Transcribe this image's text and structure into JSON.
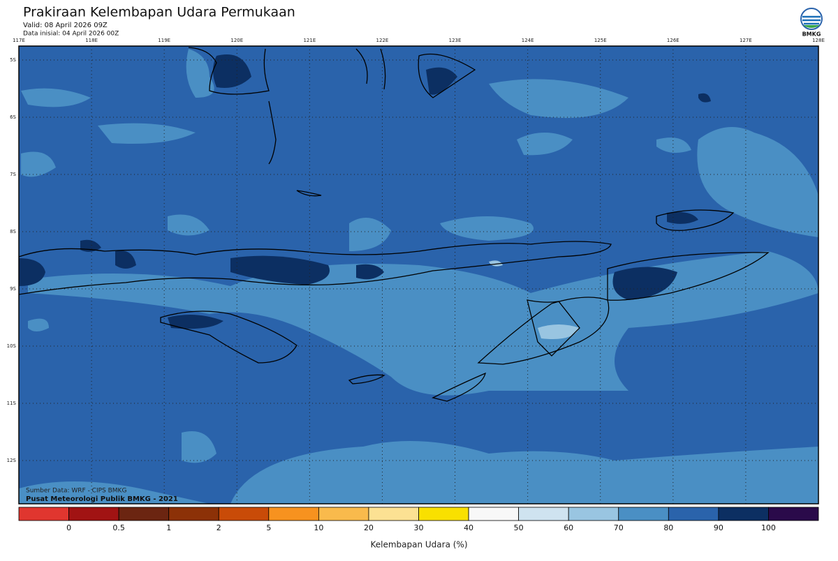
{
  "header": {
    "title": "Prakiraan Kelembapan Udara Permukaan",
    "valid": "Valid: 08 April 2026 09Z",
    "initial": "Data inisial: 04 April 2026 00Z",
    "logo": "BMKG"
  },
  "map": {
    "lon_labels": [
      "117E",
      "118E",
      "119E",
      "120E",
      "121E",
      "122E",
      "123E",
      "124E",
      "125E",
      "126E",
      "127E",
      "128E"
    ],
    "lat_labels": [
      "5S",
      "6S",
      "7S",
      "8S",
      "9S",
      "10S",
      "11S",
      "12S"
    ],
    "source": "Sumber Data: WRF - CIPS BMKG",
    "credit": "Pusat Meteorologi Publik BMKG - 2021"
  },
  "colorbar": {
    "colors": [
      "#e0362f",
      "#a11313",
      "#6b2511",
      "#8c3107",
      "#c94b08",
      "#f7921f",
      "#f9ba4c",
      "#fce193",
      "#f9e000",
      "#f8f8f8",
      "#cfe3f0",
      "#99c5e1",
      "#4a8fc4",
      "#2a63ab",
      "#0c2f62",
      "#2a0a4a"
    ],
    "labels": [
      0,
      0.5,
      1,
      2,
      5,
      10,
      20,
      30,
      40,
      50,
      60,
      70,
      80,
      90,
      100
    ],
    "title": "Kelembapan Udara (%)"
  }
}
